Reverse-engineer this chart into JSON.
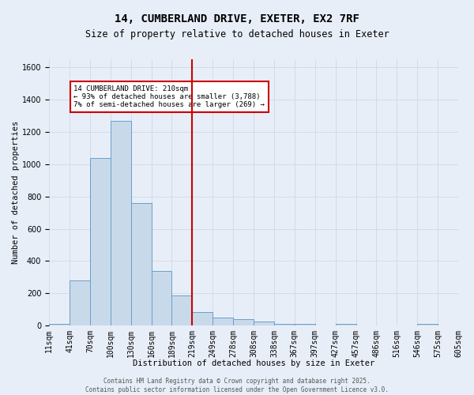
{
  "title": "14, CUMBERLAND DRIVE, EXETER, EX2 7RF",
  "subtitle": "Size of property relative to detached houses in Exeter",
  "xlabel": "Distribution of detached houses by size in Exeter",
  "ylabel": "Number of detached properties",
  "bar_values": [
    10,
    280,
    1040,
    1270,
    760,
    340,
    185,
    85,
    50,
    40,
    25,
    10,
    10,
    0,
    10,
    0,
    0,
    0,
    10,
    0
  ],
  "bin_labels": [
    "11sqm",
    "41sqm",
    "70sqm",
    "100sqm",
    "130sqm",
    "160sqm",
    "189sqm",
    "219sqm",
    "249sqm",
    "278sqm",
    "308sqm",
    "338sqm",
    "367sqm",
    "397sqm",
    "427sqm",
    "457sqm",
    "486sqm",
    "516sqm",
    "546sqm",
    "575sqm",
    "605sqm"
  ],
  "bar_color": "#c8daea",
  "bar_edge_color": "#6a9fc8",
  "grid_color": "#d0d8e8",
  "background_color": "#e8eef8",
  "vline_x": 7,
  "vline_color": "#cc0000",
  "annotation_text": "14 CUMBERLAND DRIVE: 210sqm\n← 93% of detached houses are smaller (3,788)\n7% of semi-detached houses are larger (269) →",
  "annotation_box_color": "#ffffff",
  "annotation_box_edge": "#cc0000",
  "footer_text": "Contains HM Land Registry data © Crown copyright and database right 2025.\nContains public sector information licensed under the Open Government Licence v3.0.",
  "ylim": [
    0,
    1650
  ],
  "yticks": [
    0,
    200,
    400,
    600,
    800,
    1000,
    1200,
    1400,
    1600
  ],
  "n_bins": 20,
  "title_fontsize": 10,
  "subtitle_fontsize": 8.5,
  "axis_label_fontsize": 7.5,
  "tick_fontsize": 7,
  "annotation_fontsize": 6.5,
  "footer_fontsize": 5.5
}
